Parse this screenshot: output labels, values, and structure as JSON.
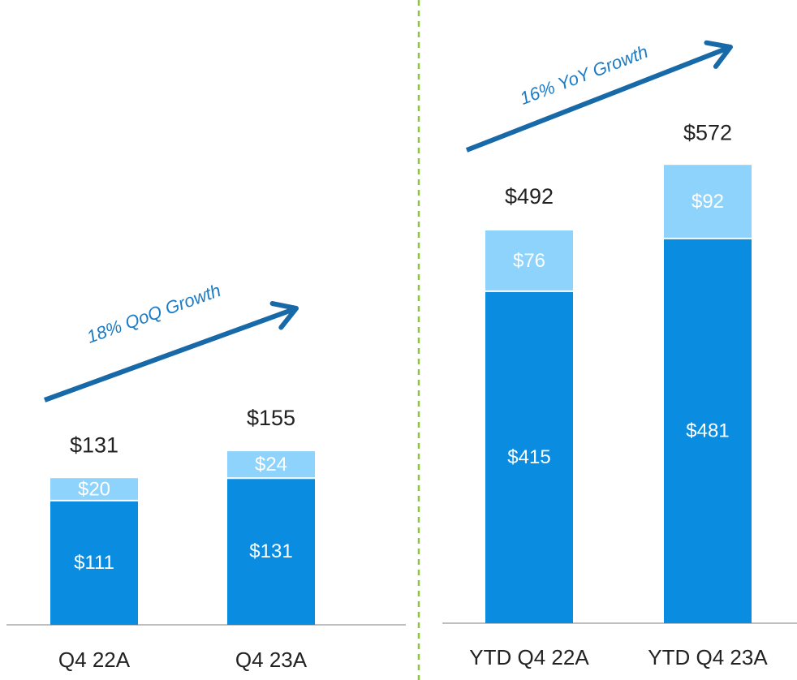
{
  "chart_data": [
    {
      "type": "stacked-bar",
      "categories": [
        "Q4 22A",
        "Q4 23A"
      ],
      "series": [
        {
          "color": "#0a8de0",
          "values": [
            111,
            131
          ],
          "value_labels": [
            "$111",
            "$131"
          ]
        },
        {
          "color": "#8dd3fb",
          "values": [
            20,
            24
          ],
          "value_labels": [
            "$20",
            "$24"
          ]
        }
      ],
      "totals": [
        131,
        155
      ],
      "total_labels": [
        "$131",
        "$155"
      ],
      "annotation": "18% QoQ Growth",
      "ylim": [
        0,
        500
      ]
    },
    {
      "type": "stacked-bar",
      "categories": [
        "YTD Q4 22A",
        "YTD Q4 23A"
      ],
      "series": [
        {
          "color": "#0a8de0",
          "values": [
            415,
            481
          ],
          "value_labels": [
            "$415",
            "$481"
          ]
        },
        {
          "color": "#8dd3fb",
          "values": [
            76,
            92
          ],
          "value_labels": [
            "$76",
            "$92"
          ]
        }
      ],
      "totals": [
        492,
        572
      ],
      "total_labels": [
        "$492",
        "$572"
      ],
      "annotation": "16% YoY Growth",
      "ylim": [
        0,
        700
      ]
    }
  ]
}
